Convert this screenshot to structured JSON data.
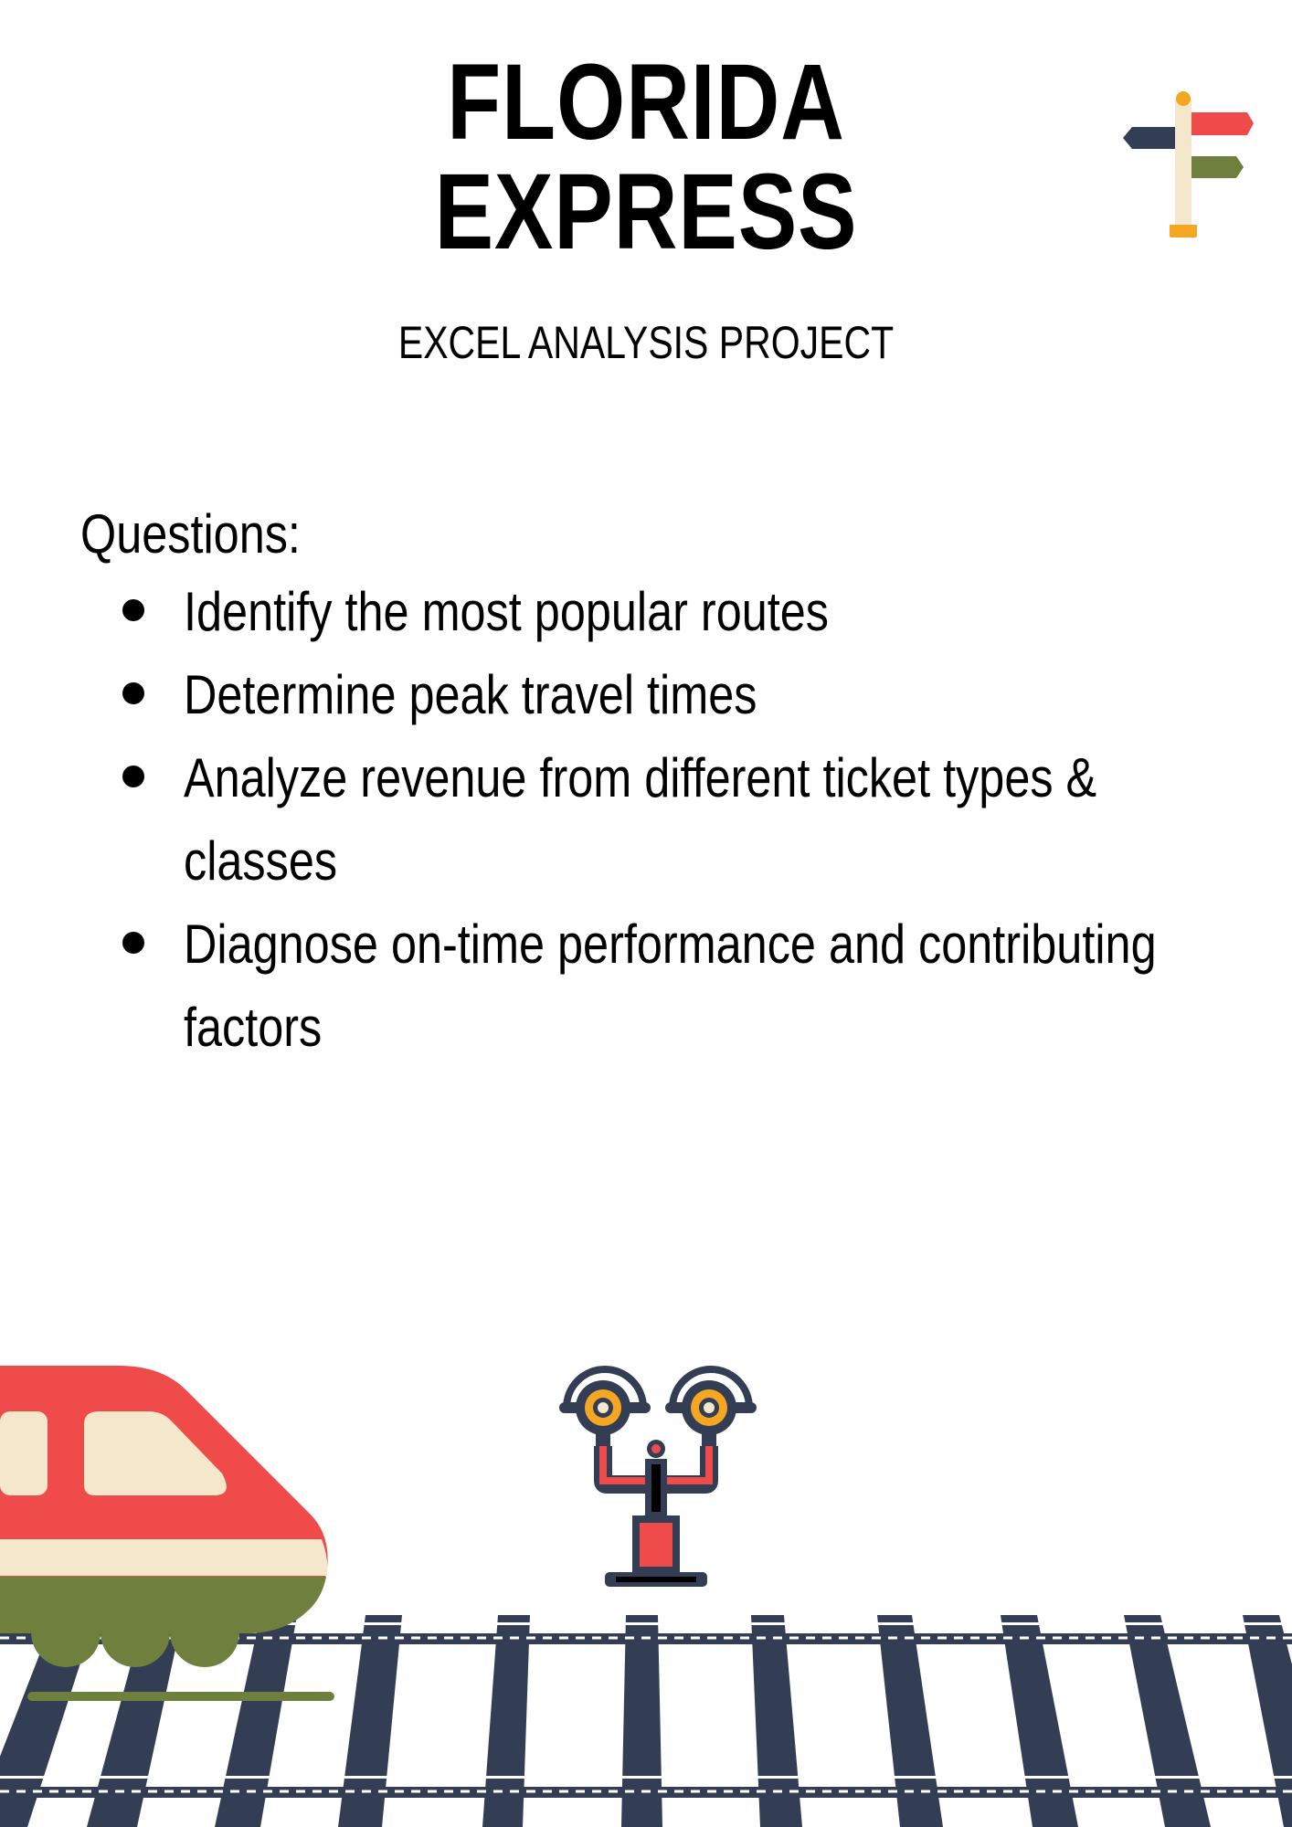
{
  "header": {
    "title_line1": "FLORIDA",
    "title_line2": "EXPRESS",
    "subtitle": "EXCEL ANALYSIS PROJECT"
  },
  "questions": {
    "heading": "Questions:",
    "items": [
      {
        "line1": "Identify the most popular routes",
        "line2": ""
      },
      {
        "line1": "Determine peak travel times",
        "line2": ""
      },
      {
        "line1": "Analyze revenue from different ticket types &",
        "line2": "classes"
      },
      {
        "line1": "Diagnose on-time performance and contributing",
        "line2": "factors"
      }
    ]
  },
  "icons": {
    "signpost": "signpost-icon",
    "railway_signal": "railway-signal-icon",
    "train": "train-icon",
    "tracks": "railway-tracks"
  },
  "colors": {
    "red": "#EF4B4B",
    "cream": "#F4E7CB",
    "olive": "#6E7F3E",
    "navy": "#333D53",
    "amber": "#F5A623"
  }
}
